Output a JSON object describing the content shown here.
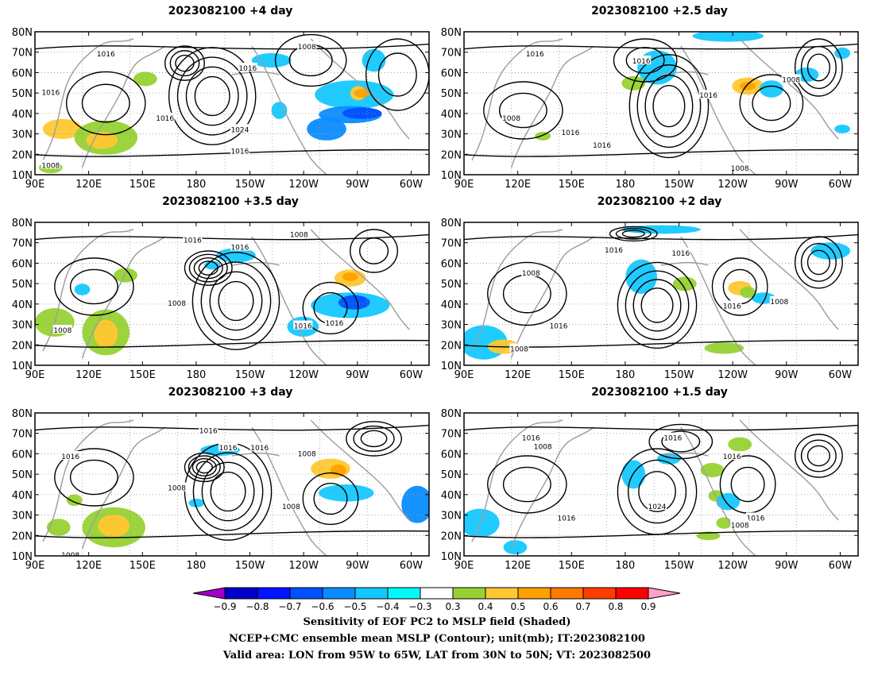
{
  "chart_data": [
    {
      "type": "heatmap",
      "title": "2023082100  +4 day",
      "x_ticks": [
        "90E",
        "120E",
        "150E",
        "180",
        "150W",
        "120W",
        "90W",
        "60W"
      ],
      "y_ticks": [
        "10N",
        "20N",
        "30N",
        "40N",
        "50N",
        "60N",
        "70N",
        "80N"
      ],
      "contour_labels": [
        "1008",
        "1016",
        "1016",
        "1016",
        "1008",
        "1016",
        "1024",
        "1016"
      ],
      "ylim": [
        10,
        80
      ],
      "grid": true
    },
    {
      "type": "heatmap",
      "title": "2023082100  +2.5 day",
      "x_ticks": [
        "90E",
        "120E",
        "150E",
        "180",
        "150W",
        "120W",
        "90W",
        "60W"
      ],
      "y_ticks": [
        "10N",
        "20N",
        "30N",
        "40N",
        "50N",
        "60N",
        "70N",
        "80N"
      ],
      "contour_labels": [
        "1016",
        "1016",
        "1008",
        "1016",
        "1016",
        "1016",
        "1008",
        "1008"
      ],
      "ylim": [
        10,
        80
      ],
      "grid": true
    },
    {
      "type": "heatmap",
      "title": "2023082100  +3.5 day",
      "x_ticks": [
        "90E",
        "120E",
        "150E",
        "180",
        "150W",
        "120W",
        "90W",
        "60W"
      ],
      "y_ticks": [
        "10N",
        "20N",
        "30N",
        "40N",
        "50N",
        "60N",
        "70N",
        "80N"
      ],
      "contour_labels": [
        "1016",
        "1016",
        "1008",
        "1008",
        "1008",
        "1016",
        "1016"
      ],
      "ylim": [
        10,
        80
      ],
      "grid": true
    },
    {
      "type": "heatmap",
      "title": "2023082100  +2 day",
      "x_ticks": [
        "90E",
        "120E",
        "150E",
        "180",
        "150W",
        "120W",
        "90W",
        "60W"
      ],
      "y_ticks": [
        "10N",
        "20N",
        "30N",
        "40N",
        "50N",
        "60N",
        "70N",
        "80N"
      ],
      "contour_labels": [
        "1016",
        "1016",
        "1008",
        "1016",
        "1008",
        "1016",
        "1008"
      ],
      "ylim": [
        10,
        80
      ],
      "grid": true
    },
    {
      "type": "heatmap",
      "title": "2023082100  +3 day",
      "x_ticks": [
        "90E",
        "120E",
        "150E",
        "180",
        "150W",
        "120W",
        "90W",
        "60W"
      ],
      "y_ticks": [
        "10N",
        "20N",
        "30N",
        "40N",
        "50N",
        "60N",
        "70N",
        "80N"
      ],
      "contour_labels": [
        "1016",
        "1016",
        "1016",
        "1016",
        "1008",
        "1008",
        "1008",
        "1008"
      ],
      "ylim": [
        10,
        80
      ],
      "grid": true
    },
    {
      "type": "heatmap",
      "title": "2023082100  +1.5 day",
      "x_ticks": [
        "90E",
        "120E",
        "150E",
        "180",
        "150W",
        "120W",
        "90W",
        "60W"
      ],
      "y_ticks": [
        "10N",
        "20N",
        "30N",
        "40N",
        "50N",
        "60N",
        "70N",
        "80N"
      ],
      "contour_labels": [
        "1016",
        "1008",
        "1016",
        "1016",
        "1024",
        "1016",
        "1016",
        "1008"
      ],
      "ylim": [
        10,
        80
      ],
      "grid": true
    }
  ],
  "colorbar": {
    "labels": [
      "-0.9",
      "-0.8",
      "-0.7",
      "-0.6",
      "-0.5",
      "-0.4",
      "-0.3",
      "0.3",
      "0.4",
      "0.5",
      "0.6",
      "0.7",
      "0.8",
      "0.9"
    ],
    "colors": [
      "#a000c8",
      "#0000c8",
      "#0014ff",
      "#0050ff",
      "#0a8cff",
      "#14c8ff",
      "#00fafa",
      "#ffffff",
      "#96d232",
      "#ffc832",
      "#ffa000",
      "#ff7800",
      "#ff3c00",
      "#ff0000",
      "#ffa0c8"
    ]
  },
  "caption": {
    "line1": "Sensitivity of EOF PC2 to MSLP field (Shaded)",
    "line2": "NCEP+CMC ensemble mean MSLP (Contour); unit(mb); IT:2023082100",
    "line3": "Valid area: LON from 95W to 65W, LAT from 30N to 50N; VT: 2023082500"
  },
  "colors": {
    "contour": "#000000",
    "coastline": "#a0a0a0",
    "grid": "#9a9a9a"
  }
}
